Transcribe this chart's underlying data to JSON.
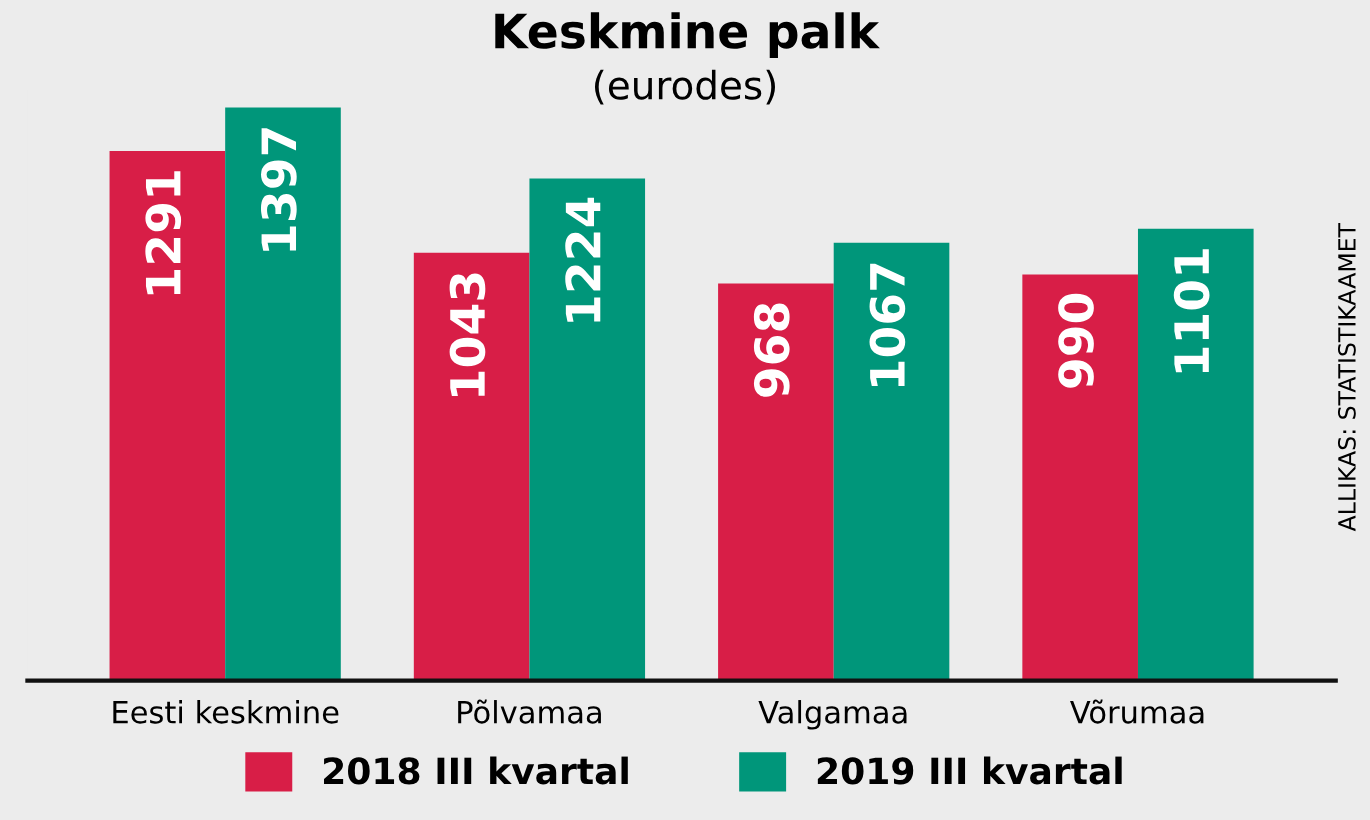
{
  "chart_data": {
    "type": "bar",
    "title": "Keskmine palk",
    "subtitle": "(eurodes)",
    "categories": [
      "Eesti keskmine",
      "Põlvamaa",
      "Valgamaa",
      "Võrumaa"
    ],
    "series": [
      {
        "name": "2018 III kvartal",
        "color": "#d81e47",
        "values": [
          1291,
          1043,
          968,
          990
        ]
      },
      {
        "name": "2019 III kvartal",
        "color": "#00967a",
        "values": [
          1397,
          1224,
          1067,
          1101
        ]
      }
    ],
    "data_labels": true,
    "legend": "bottom",
    "grid": false,
    "annotations": [
      "ALLIKAS: STATISTIKAAMET"
    ]
  }
}
